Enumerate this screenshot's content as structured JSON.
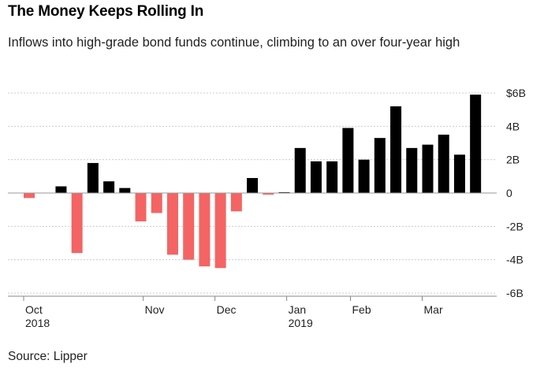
{
  "chart_data": {
    "type": "bar",
    "title": "The Money Keeps Rolling In",
    "subtitle": "Inflows into high-grade bond funds continue, climbing to an over four-year high",
    "source": "Source: Lipper",
    "xlabel": "",
    "ylabel": "",
    "ylim": [
      -6,
      6
    ],
    "units": "billions of USD (weekly net flows)",
    "y_ticks": [
      {
        "value": 6,
        "label": "$6B"
      },
      {
        "value": 4,
        "label": "4B"
      },
      {
        "value": 2,
        "label": "2B"
      },
      {
        "value": 0,
        "label": "0"
      },
      {
        "value": -2,
        "label": "-2B"
      },
      {
        "value": -4,
        "label": "-4B"
      },
      {
        "value": -6,
        "label": "-6B"
      }
    ],
    "x_ticks": [
      {
        "index": 0,
        "label": "Oct",
        "sublabel": "2018"
      },
      {
        "index": 7.5,
        "label": "Nov",
        "sublabel": ""
      },
      {
        "index": 12,
        "label": "Dec",
        "sublabel": ""
      },
      {
        "index": 16.5,
        "label": "Jan",
        "sublabel": "2019"
      },
      {
        "index": 20.5,
        "label": "Feb",
        "sublabel": ""
      },
      {
        "index": 25,
        "label": "Mar",
        "sublabel": ""
      }
    ],
    "colors": {
      "positive": "#000000",
      "negative": "#f46464",
      "grid": "#cccccc",
      "zero_line": "#999999"
    },
    "grid": true,
    "legend": "none",
    "values": [
      -0.3,
      0,
      0.4,
      -3.6,
      1.8,
      0.7,
      0.3,
      -1.7,
      -1.2,
      -3.7,
      -4.0,
      -4.4,
      -4.5,
      -1.1,
      0.9,
      -0.1,
      0.05,
      2.7,
      1.9,
      1.9,
      3.9,
      2.0,
      3.3,
      5.2,
      2.7,
      2.9,
      3.5,
      2.3,
      5.9
    ]
  }
}
